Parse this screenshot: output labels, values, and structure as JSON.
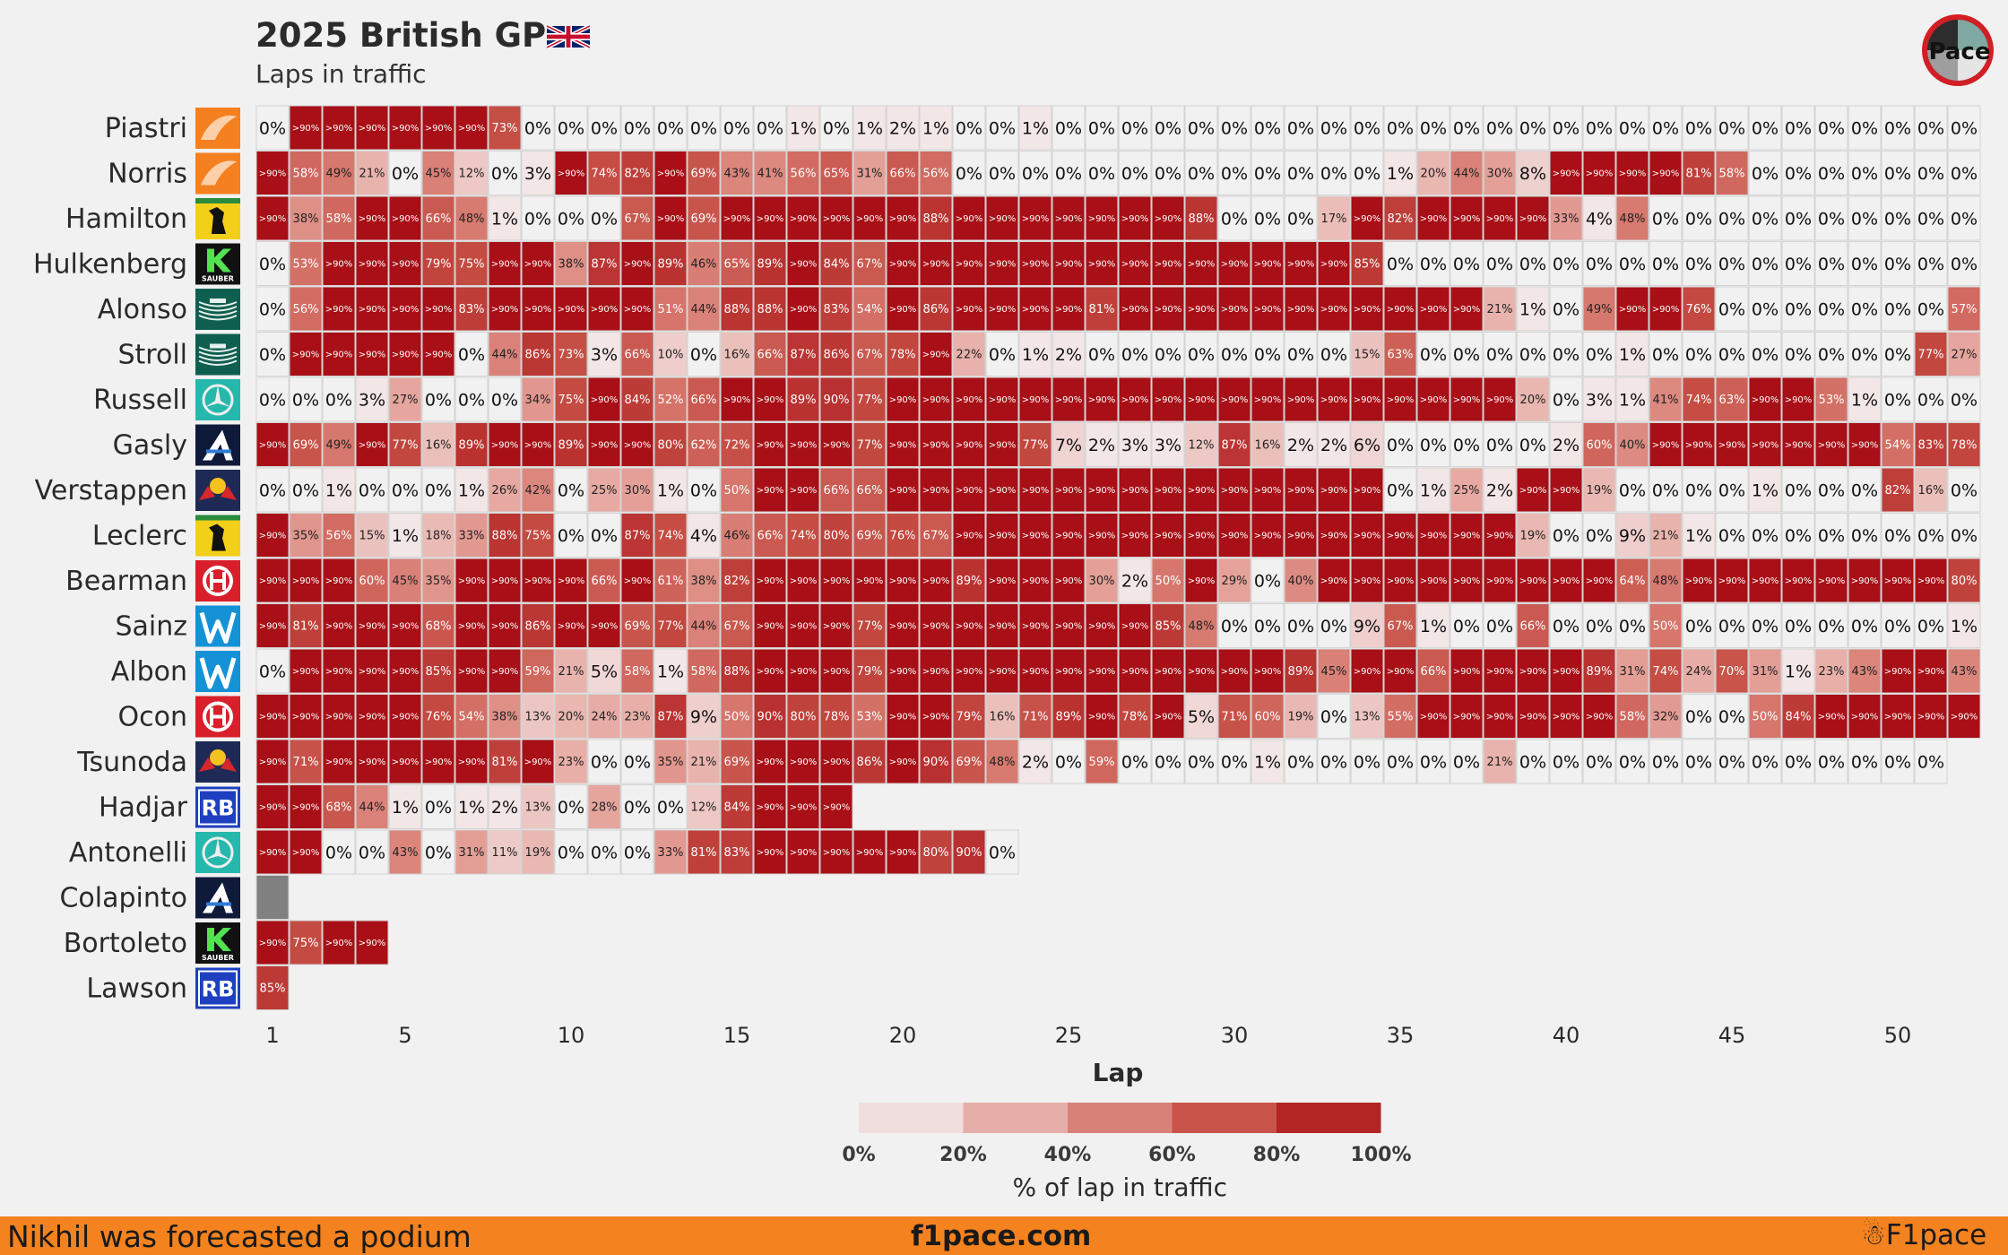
{
  "header": {
    "title": "2025 British GP",
    "subtitle": "Laps in traffic",
    "flag_icon": "uk-flag-icon",
    "logo_text": "Pace"
  },
  "footer": {
    "left_text": "Nikhil was forecasted a podium",
    "center_text": "f1pace.com",
    "right_text": "F1pace",
    "background": "#f4821f"
  },
  "chart_data": {
    "type": "heatmap",
    "title": "2025 British GP",
    "subtitle": "Laps in traffic",
    "xlabel": "Lap",
    "colorbar_label": "% of lap in traffic",
    "x_ticks": [
      1,
      5,
      10,
      15,
      20,
      25,
      30,
      35,
      40,
      45,
      50
    ],
    "colorbar_ticks": [
      "0%",
      "20%",
      "40%",
      "60%",
      "80%",
      "100%"
    ],
    "colors": [
      "#f0dddd",
      "#e6aea8",
      "#d88179",
      "#c8544a",
      "#b42526"
    ],
    "no_data_color": "#808080",
    "legend": "bottom-center",
    "drivers": [
      {
        "name": "Piastri",
        "team": "McLaren",
        "logo": "mclaren-logo-icon",
        "values": [
          0,
          91,
          91,
          91,
          91,
          91,
          91,
          73,
          0,
          0,
          0,
          0,
          0,
          0,
          0,
          0,
          1,
          0,
          1,
          2,
          1,
          0,
          0,
          1,
          0,
          0,
          0,
          0,
          0,
          0,
          0,
          0,
          0,
          0,
          0,
          0,
          0,
          0,
          0,
          0,
          0,
          0,
          0,
          0,
          0,
          0,
          0,
          0,
          0,
          0,
          0,
          0
        ]
      },
      {
        "name": "Norris",
        "team": "McLaren",
        "logo": "mclaren-logo-icon",
        "values": [
          91,
          58,
          49,
          21,
          0,
          45,
          12,
          0,
          3,
          91,
          74,
          82,
          91,
          69,
          43,
          41,
          56,
          65,
          31,
          66,
          56,
          0,
          0,
          0,
          0,
          0,
          0,
          0,
          0,
          0,
          0,
          0,
          0,
          0,
          1,
          20,
          44,
          30,
          8,
          91,
          91,
          91,
          91,
          81,
          58,
          0,
          0,
          0,
          0,
          0,
          0,
          0
        ]
      },
      {
        "name": "Hamilton",
        "team": "Ferrari",
        "logo": "ferrari-logo-icon",
        "values": [
          91,
          38,
          58,
          91,
          91,
          66,
          48,
          1,
          0,
          0,
          0,
          67,
          91,
          69,
          91,
          91,
          91,
          91,
          91,
          91,
          88,
          91,
          91,
          91,
          91,
          91,
          91,
          91,
          88,
          0,
          0,
          0,
          17,
          91,
          82,
          91,
          91,
          91,
          91,
          33,
          4,
          48,
          0,
          0,
          0,
          0,
          0,
          0,
          0,
          0,
          0,
          0
        ]
      },
      {
        "name": "Hulkenberg",
        "team": "Sauber",
        "logo": "sauber-logo-icon",
        "values": [
          0,
          53,
          91,
          91,
          91,
          79,
          75,
          91,
          91,
          38,
          87,
          91,
          89,
          46,
          65,
          89,
          91,
          84,
          67,
          91,
          91,
          91,
          91,
          91,
          91,
          91,
          91,
          91,
          91,
          91,
          91,
          91,
          91,
          85,
          0,
          0,
          0,
          0,
          0,
          0,
          0,
          0,
          0,
          0,
          0,
          0,
          0,
          0,
          0,
          0,
          0,
          0
        ]
      },
      {
        "name": "Alonso",
        "team": "Aston Martin",
        "logo": "aston-martin-logo-icon",
        "values": [
          0,
          56,
          91,
          91,
          91,
          91,
          83,
          91,
          91,
          91,
          91,
          91,
          51,
          44,
          88,
          88,
          91,
          83,
          54,
          91,
          86,
          91,
          91,
          91,
          91,
          81,
          91,
          91,
          91,
          91,
          91,
          91,
          91,
          91,
          91,
          91,
          91,
          21,
          1,
          0,
          49,
          91,
          91,
          76,
          0,
          0,
          0,
          0,
          0,
          0,
          0,
          57
        ]
      },
      {
        "name": "Stroll",
        "team": "Aston Martin",
        "logo": "aston-martin-logo-icon",
        "values": [
          0,
          91,
          91,
          91,
          91,
          91,
          0,
          44,
          86,
          73,
          3,
          66,
          10,
          0,
          16,
          66,
          87,
          86,
          67,
          78,
          91,
          22,
          0,
          1,
          2,
          0,
          0,
          0,
          0,
          0,
          0,
          0,
          0,
          15,
          63,
          0,
          0,
          0,
          0,
          0,
          0,
          1,
          0,
          0,
          0,
          0,
          0,
          0,
          0,
          0,
          77,
          27
        ]
      },
      {
        "name": "Russell",
        "team": "Mercedes",
        "logo": "mercedes-logo-icon",
        "values": [
          0,
          0,
          0,
          3,
          27,
          0,
          0,
          0,
          34,
          75,
          91,
          84,
          52,
          66,
          91,
          91,
          89,
          90,
          77,
          91,
          91,
          91,
          91,
          91,
          91,
          91,
          91,
          91,
          91,
          91,
          91,
          91,
          91,
          91,
          91,
          91,
          91,
          91,
          20,
          0,
          3,
          1,
          41,
          74,
          63,
          91,
          91,
          53,
          1,
          0,
          0,
          0
        ]
      },
      {
        "name": "Gasly",
        "team": "Alpine",
        "logo": "alpine-logo-icon",
        "values": [
          91,
          69,
          49,
          91,
          77,
          16,
          89,
          91,
          91,
          89,
          91,
          91,
          80,
          62,
          72,
          91,
          91,
          91,
          77,
          91,
          91,
          91,
          91,
          77,
          7,
          2,
          3,
          3,
          12,
          87,
          16,
          2,
          2,
          6,
          0,
          0,
          0,
          0,
          0,
          2,
          60,
          40,
          91,
          91,
          91,
          91,
          91,
          91,
          91,
          54,
          83,
          78
        ]
      },
      {
        "name": "Verstappen",
        "team": "Red Bull",
        "logo": "red-bull-logo-icon",
        "values": [
          0,
          0,
          1,
          0,
          0,
          0,
          1,
          26,
          42,
          0,
          25,
          30,
          1,
          0,
          50,
          91,
          91,
          66,
          66,
          91,
          91,
          91,
          91,
          91,
          91,
          91,
          91,
          91,
          91,
          91,
          91,
          91,
          91,
          91,
          0,
          1,
          25,
          2,
          91,
          91,
          19,
          0,
          0,
          0,
          0,
          1,
          0,
          0,
          0,
          82,
          16,
          0
        ]
      },
      {
        "name": "Leclerc",
        "team": "Ferrari",
        "logo": "ferrari-logo-icon",
        "values": [
          91,
          35,
          56,
          15,
          1,
          18,
          33,
          88,
          75,
          0,
          0,
          87,
          74,
          4,
          46,
          66,
          74,
          80,
          69,
          76,
          67,
          91,
          91,
          91,
          91,
          91,
          91,
          91,
          91,
          91,
          91,
          91,
          91,
          91,
          91,
          91,
          91,
          91,
          19,
          0,
          0,
          9,
          21,
          1,
          0,
          0,
          0,
          0,
          0,
          0,
          0,
          0
        ]
      },
      {
        "name": "Bearman",
        "team": "Haas",
        "logo": "haas-logo-icon",
        "values": [
          91,
          91,
          91,
          60,
          45,
          35,
          91,
          91,
          91,
          91,
          66,
          91,
          61,
          38,
          82,
          91,
          91,
          91,
          91,
          91,
          91,
          89,
          91,
          91,
          91,
          30,
          2,
          50,
          91,
          29,
          0,
          40,
          91,
          91,
          91,
          91,
          91,
          91,
          91,
          91,
          91,
          64,
          48,
          91,
          91,
          91,
          91,
          91,
          91,
          91,
          91,
          80
        ]
      },
      {
        "name": "Sainz",
        "team": "Williams",
        "logo": "williams-logo-icon",
        "values": [
          91,
          81,
          91,
          91,
          91,
          68,
          91,
          91,
          86,
          91,
          91,
          69,
          77,
          44,
          67,
          91,
          91,
          91,
          77,
          91,
          91,
          91,
          91,
          91,
          91,
          91,
          91,
          85,
          48,
          0,
          0,
          0,
          0,
          9,
          67,
          1,
          0,
          0,
          66,
          0,
          0,
          0,
          50,
          0,
          0,
          0,
          0,
          0,
          0,
          0,
          0,
          1
        ]
      },
      {
        "name": "Albon",
        "team": "Williams",
        "logo": "williams-logo-icon",
        "values": [
          0,
          91,
          91,
          91,
          91,
          85,
          91,
          91,
          59,
          21,
          5,
          58,
          1,
          58,
          88,
          91,
          91,
          91,
          79,
          91,
          91,
          91,
          91,
          91,
          91,
          91,
          91,
          91,
          91,
          91,
          91,
          89,
          45,
          91,
          91,
          66,
          91,
          91,
          91,
          91,
          89,
          31,
          74,
          24,
          70,
          31,
          1,
          23,
          43,
          91,
          91,
          43
        ]
      },
      {
        "name": "Ocon",
        "team": "Haas",
        "logo": "haas-logo-icon",
        "values": [
          91,
          91,
          91,
          91,
          91,
          76,
          54,
          38,
          13,
          20,
          24,
          23,
          87,
          9,
          50,
          90,
          80,
          78,
          53,
          91,
          91,
          79,
          16,
          71,
          89,
          91,
          78,
          91,
          5,
          71,
          60,
          19,
          0,
          13,
          55,
          91,
          91,
          91,
          91,
          91,
          91,
          58,
          32,
          0,
          0,
          50,
          84,
          91,
          91,
          91,
          91,
          91
        ]
      },
      {
        "name": "Tsunoda",
        "team": "Red Bull",
        "logo": "red-bull-logo-icon",
        "values": [
          91,
          71,
          91,
          91,
          91,
          91,
          91,
          81,
          91,
          23,
          0,
          0,
          35,
          21,
          69,
          91,
          91,
          91,
          86,
          91,
          90,
          69,
          48,
          2,
          0,
          59,
          0,
          0,
          0,
          0,
          1,
          0,
          0,
          0,
          0,
          0,
          0,
          21,
          0,
          0,
          0,
          0,
          0,
          0,
          0,
          0,
          0,
          0,
          0,
          0,
          0
        ]
      },
      {
        "name": "Hadjar",
        "team": "Racing Bulls",
        "logo": "racing-bulls-logo-icon",
        "values": [
          91,
          91,
          68,
          44,
          1,
          0,
          1,
          2,
          13,
          0,
          28,
          0,
          0,
          12,
          84,
          91,
          91,
          91
        ]
      },
      {
        "name": "Antonelli",
        "team": "Mercedes",
        "logo": "mercedes-logo-icon",
        "values": [
          91,
          91,
          0,
          0,
          43,
          0,
          31,
          11,
          19,
          0,
          0,
          0,
          33,
          81,
          83,
          91,
          91,
          91,
          91,
          91,
          80,
          90,
          0
        ]
      },
      {
        "name": "Colapinto",
        "team": "Alpine",
        "logo": "alpine-logo-icon",
        "values": [
          null
        ]
      },
      {
        "name": "Bortoleto",
        "team": "Sauber",
        "logo": "sauber-logo-icon",
        "values": [
          91,
          75,
          91,
          91
        ]
      },
      {
        "name": "Lawson",
        "team": "Racing Bulls",
        "logo": "racing-bulls-logo-icon",
        "values": [
          85
        ]
      }
    ]
  }
}
